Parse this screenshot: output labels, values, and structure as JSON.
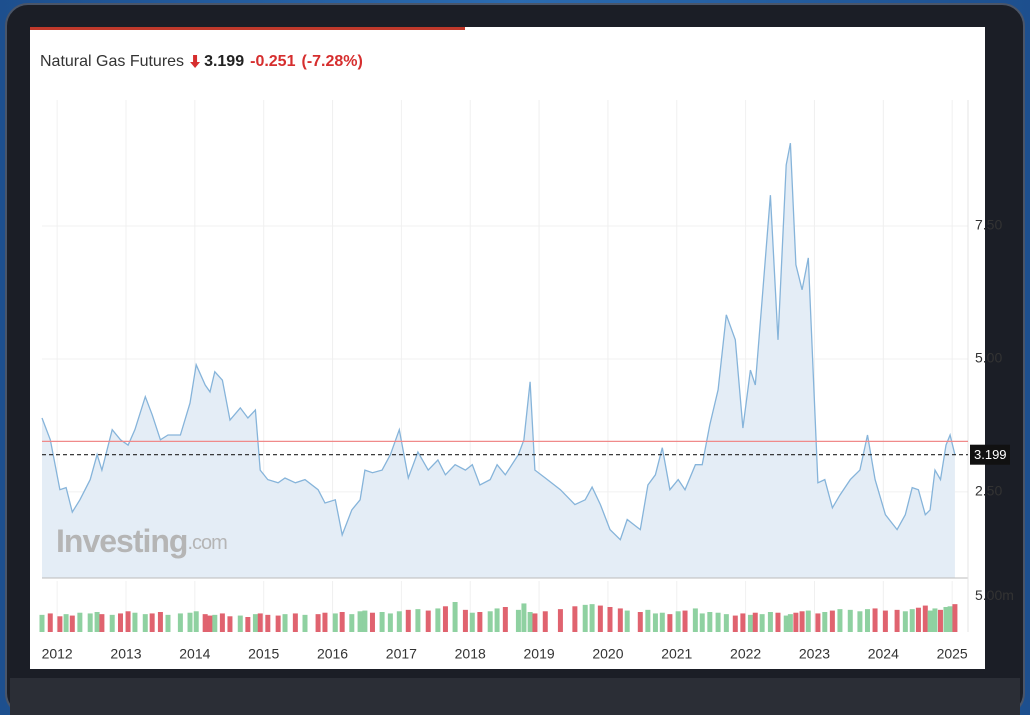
{
  "chart_data": {
    "type": "line",
    "title": "Natural Gas Futures",
    "last_value": 3.199,
    "change": -0.251,
    "change_pct": {
      "value": -7.28,
      "label": "(-7.28%)"
    },
    "prev_close": 3.45,
    "watermark": [
      "Investing",
      ".com"
    ],
    "line_color": "#86b4da",
    "fill_color": "#e4edf6",
    "grid": true,
    "xlim": [
      2011.78,
      2025.23
    ],
    "xticks": [
      2012,
      2013,
      2014,
      2015,
      2016,
      2017,
      2018,
      2019,
      2020,
      2021,
      2022,
      2023,
      2024,
      2025
    ],
    "ylim": [
      0.88,
      9.87
    ],
    "yticks": [
      {
        "value": 2.5,
        "label": "2.50"
      },
      {
        "value": 5,
        "label": "5.00"
      },
      {
        "value": 7.5,
        "label": "7.50"
      }
    ],
    "x": [
      2011.78,
      2011.9,
      2012.04,
      2012.13,
      2012.22,
      2012.33,
      2012.48,
      2012.58,
      2012.65,
      2012.8,
      2012.92,
      2013.03,
      2013.13,
      2013.28,
      2013.38,
      2013.5,
      2013.61,
      2013.79,
      2013.93,
      2014.02,
      2014.15,
      2014.22,
      2014.29,
      2014.4,
      2014.51,
      2014.66,
      2014.77,
      2014.88,
      2014.95,
      2015.06,
      2015.21,
      2015.31,
      2015.46,
      2015.6,
      2015.79,
      2015.89,
      2016.04,
      2016.14,
      2016.28,
      2016.4,
      2016.47,
      2016.58,
      2016.72,
      2016.84,
      2016.97,
      2017.1,
      2017.24,
      2017.39,
      2017.53,
      2017.64,
      2017.78,
      2017.93,
      2018.03,
      2018.14,
      2018.29,
      2018.39,
      2018.51,
      2018.7,
      2018.78,
      2018.87,
      2018.94,
      2019.09,
      2019.31,
      2019.52,
      2019.67,
      2019.77,
      2019.89,
      2020.03,
      2020.18,
      2020.28,
      2020.47,
      2020.58,
      2020.69,
      2020.79,
      2020.9,
      2021.02,
      2021.12,
      2021.27,
      2021.37,
      2021.48,
      2021.6,
      2021.72,
      2021.85,
      2021.96,
      2022.07,
      2022.14,
      2022.24,
      2022.36,
      2022.47,
      2022.59,
      2022.65,
      2022.73,
      2022.82,
      2022.91,
      2023.05,
      2023.15,
      2023.26,
      2023.37,
      2023.52,
      2023.66,
      2023.77,
      2023.88,
      2024.03,
      2024.2,
      2024.32,
      2024.42,
      2024.51,
      2024.61,
      2024.68,
      2024.75,
      2024.83,
      2024.91,
      2024.97,
      2025.04
    ],
    "values": [
      3.89,
      3.48,
      2.54,
      2.58,
      2.12,
      2.35,
      2.73,
      3.2,
      2.91,
      3.67,
      3.48,
      3.38,
      3.67,
      4.29,
      3.95,
      3.48,
      3.57,
      3.57,
      4.17,
      4.89,
      4.51,
      4.38,
      4.76,
      4.6,
      3.85,
      4.08,
      3.89,
      4.04,
      2.91,
      2.73,
      2.67,
      2.76,
      2.67,
      2.73,
      2.54,
      2.29,
      2.35,
      1.69,
      2.16,
      2.35,
      2.91,
      2.86,
      2.91,
      3.2,
      3.67,
      2.76,
      3.25,
      2.91,
      3.1,
      2.82,
      3.01,
      2.91,
      3.01,
      2.63,
      2.73,
      3.01,
      2.82,
      3.2,
      3.48,
      4.57,
      2.91,
      2.76,
      2.54,
      2.26,
      2.35,
      2.59,
      2.26,
      1.79,
      1.6,
      1.98,
      1.79,
      2.63,
      2.82,
      3.33,
      2.54,
      2.73,
      2.54,
      3.01,
      3.01,
      3.76,
      4.42,
      5.83,
      5.36,
      3.7,
      4.79,
      4.51,
      6.11,
      8.08,
      5.36,
      8.65,
      9.06,
      6.77,
      6.3,
      6.9,
      2.67,
      2.73,
      2.2,
      2.44,
      2.73,
      2.91,
      3.57,
      2.73,
      2.07,
      1.79,
      2.07,
      2.58,
      2.54,
      2.07,
      2.16,
      2.91,
      2.73,
      3.38,
      3.57,
      3.199
    ],
    "volume": {
      "ylim": [
        0,
        6.58
      ],
      "yticks": [
        {
          "value": 5,
          "label": "5.00m"
        }
      ],
      "up_color": "#8fd1a1",
      "down_color": "#e0636f",
      "values": [
        2.4,
        2.6,
        2.2,
        2.5,
        2.3,
        2.7,
        2.6,
        2.8,
        2.5,
        2.4,
        2.6,
        2.9,
        2.7,
        2.5,
        2.6,
        2.8,
        2.4,
        2.6,
        2.7,
        2.9,
        2.5,
        2.3,
        2.4,
        2.6,
        2.2,
        2.3,
        2.1,
        2.5,
        2.6,
        2.4,
        2.3,
        2.5,
        2.6,
        2.4,
        2.5,
        2.7,
        2.6,
        2.8,
        2.5,
        2.9,
        3.0,
        2.7,
        2.8,
        2.6,
        2.9,
        3.1,
        3.2,
        3.0,
        3.3,
        3.6,
        4.2,
        3.1,
        2.7,
        2.8,
        2.9,
        3.3,
        3.5,
        3.1,
        4.0,
        2.8,
        2.6,
        2.9,
        3.2,
        3.6,
        3.8,
        3.9,
        3.7,
        3.5,
        3.3,
        3.0,
        2.8,
        3.1,
        2.6,
        2.7,
        2.5,
        2.9,
        3.0,
        3.3,
        2.6,
        2.8,
        2.7,
        2.5,
        2.3,
        2.6,
        2.4,
        2.7,
        2.5,
        2.8,
        2.7,
        2.3,
        2.5,
        2.7,
        2.9,
        3.0,
        2.6,
        2.8,
        3.0,
        3.2,
        3.1,
        2.9,
        3.2,
        3.3,
        3.0,
        3.1,
        2.9,
        3.2,
        3.4,
        3.7,
        3.0,
        3.3,
        3.1,
        3.5,
        3.6,
        3.9
      ]
    }
  }
}
